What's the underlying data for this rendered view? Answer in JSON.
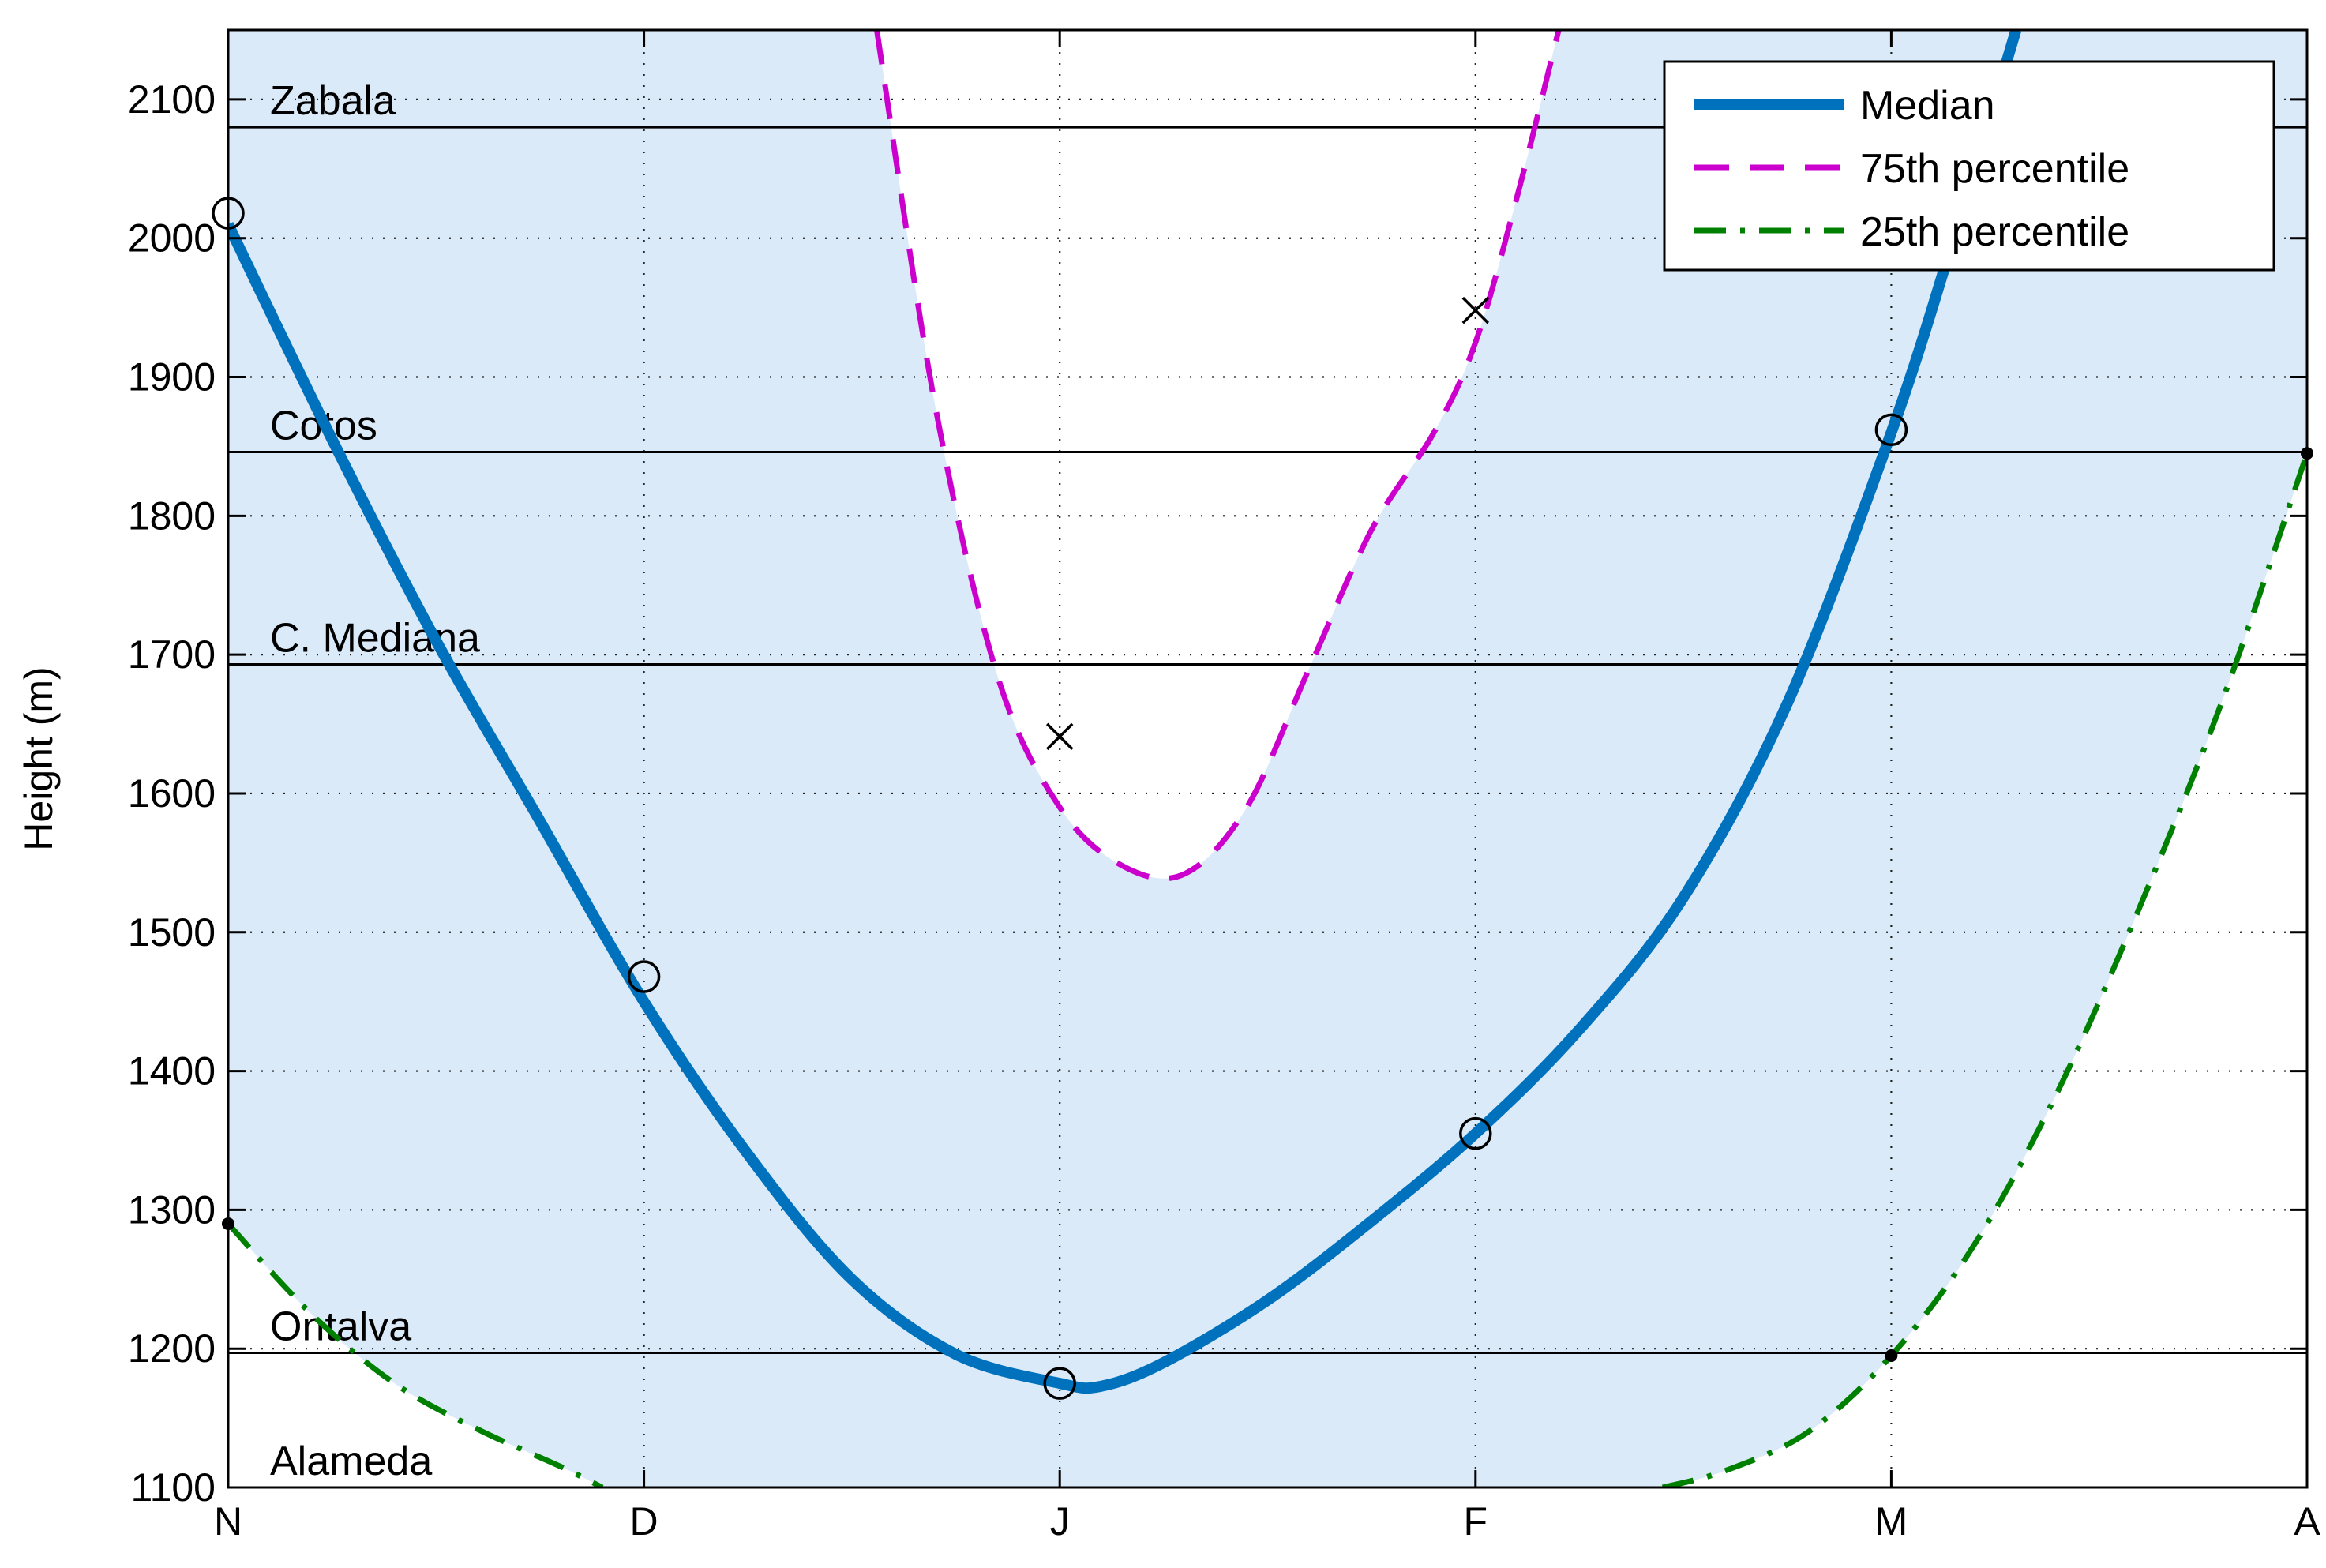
{
  "chart_data": {
    "type": "line",
    "title": "",
    "xlabel": "",
    "ylabel": "Height (m)",
    "x_categories": [
      "N",
      "D",
      "J",
      "F",
      "M",
      "A"
    ],
    "xlim": [
      0,
      5
    ],
    "ylim": [
      1100,
      2150
    ],
    "y_ticks": [
      1100,
      1200,
      1300,
      1400,
      1500,
      1600,
      1700,
      1800,
      1900,
      2000,
      2100
    ],
    "grid": "dotted",
    "legend_position": "top-right",
    "reference_lines": [
      {
        "label": "Zabala",
        "y": 2080
      },
      {
        "label": "Cotos",
        "y": 1846
      },
      {
        "label": "C. Mediana",
        "y": 1693
      },
      {
        "label": "Ontalva",
        "y": 1197
      },
      {
        "label": "Alameda",
        "y": 1100
      }
    ],
    "series": [
      {
        "name": "Median",
        "style": "solid",
        "color": "#0072bd",
        "x": [
          0,
          0.25,
          0.5,
          0.75,
          1,
          1.25,
          1.5,
          1.75,
          2,
          2.1,
          2.25,
          2.5,
          2.75,
          3,
          3.25,
          3.5,
          3.75,
          4,
          4.15,
          4.3
        ],
        "y": [
          2010,
          1855,
          1710,
          1580,
          1450,
          1340,
          1250,
          1196,
          1175,
          1173,
          1190,
          1235,
          1292,
          1355,
          1430,
          1525,
          1665,
          1860,
          2000,
          2150
        ],
        "markers": [
          {
            "x": 0,
            "y": 2018
          },
          {
            "x": 1,
            "y": 1468
          },
          {
            "x": 2,
            "y": 1175
          },
          {
            "x": 3,
            "y": 1355
          },
          {
            "x": 4,
            "y": 1862
          }
        ]
      },
      {
        "name": "75th percentile",
        "style": "dashed",
        "color": "#cc00cc",
        "x": [
          1.56,
          1.7,
          1.85,
          2.0,
          2.15,
          2.3,
          2.45,
          2.6,
          2.75,
          2.9,
          3.0,
          3.1,
          3.2
        ],
        "y": [
          2150,
          1880,
          1685,
          1590,
          1548,
          1542,
          1590,
          1690,
          1790,
          1860,
          1925,
          2030,
          2150
        ],
        "markers": [
          {
            "x": 2,
            "y": 1641
          },
          {
            "x": 3,
            "y": 1948
          }
        ]
      },
      {
        "name": "25th percentile",
        "style": "dashdot",
        "color": "#008000",
        "x": [
          0,
          0.2,
          0.4,
          0.6,
          0.8,
          0.9,
          3.45,
          3.6,
          3.8,
          4.0,
          4.2,
          4.4,
          4.6,
          4.8,
          5.0
        ],
        "y": [
          1290,
          1225,
          1175,
          1142,
          1115,
          1100,
          1100,
          1112,
          1140,
          1195,
          1275,
          1385,
          1520,
          1670,
          1845
        ],
        "markers": [
          {
            "x": 0,
            "y": 1290
          },
          {
            "x": 4,
            "y": 1195
          },
          {
            "x": 5,
            "y": 1845
          }
        ]
      }
    ]
  }
}
